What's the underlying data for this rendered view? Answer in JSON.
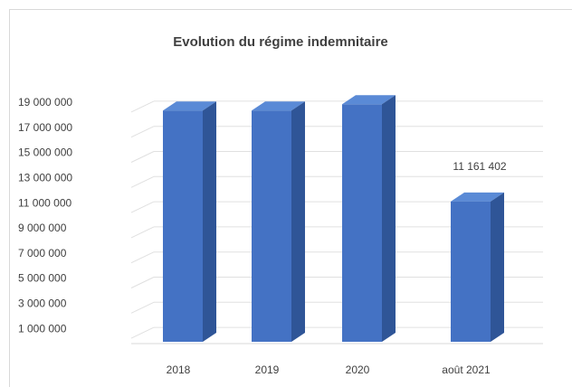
{
  "chart_data": {
    "type": "bar3d",
    "title": "Evolution du régime indemnitaire",
    "categories": [
      "2018",
      "2019",
      "2020",
      "août 2021"
    ],
    "values": [
      18400000,
      18400000,
      18900000,
      11161402
    ],
    "value_labels": [
      null,
      null,
      null,
      "11 161 402"
    ],
    "color": "#4472c4",
    "ylim": [
      0,
      20000000
    ],
    "yticks": [
      {
        "value": 19000000,
        "label": "19 000 000"
      },
      {
        "value": 17000000,
        "label": "17 000 000"
      },
      {
        "value": 15000000,
        "label": "15 000 000"
      },
      {
        "value": 13000000,
        "label": "13 000 000"
      },
      {
        "value": 11000000,
        "label": "11 000 000"
      },
      {
        "value": 9000000,
        "label": "9 000 000"
      },
      {
        "value": 7000000,
        "label": "7 000 000"
      },
      {
        "value": 5000000,
        "label": "5 000 000"
      },
      {
        "value": 3000000,
        "label": "3 000 000"
      },
      {
        "value": 1000000,
        "label": "1 000 000"
      }
    ],
    "grid": true
  }
}
